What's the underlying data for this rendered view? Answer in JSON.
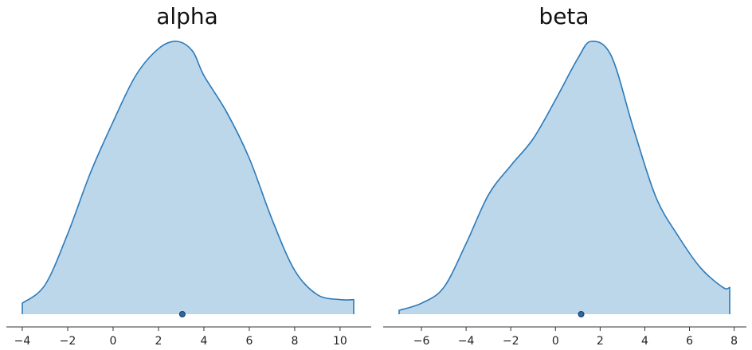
{
  "chart_data": [
    {
      "type": "area",
      "title": "alpha",
      "xlabel": "",
      "ylabel": "",
      "xlim": [
        -4,
        10.6
      ],
      "grid": false,
      "legend": "none",
      "x_ticks": [
        -4,
        -2,
        0,
        2,
        4,
        6,
        8,
        10
      ],
      "x_tick_labels": [
        "−4",
        "−2",
        "0",
        "2",
        "4",
        "6",
        "8",
        "10"
      ],
      "x": [
        -4.0,
        -3.0,
        -2.0,
        -1.0,
        0.0,
        1.0,
        2.0,
        2.8,
        3.5,
        4.0,
        5.0,
        6.0,
        7.0,
        8.0,
        9.0,
        10.0,
        10.6
      ],
      "density": [
        0.045,
        0.12,
        0.33,
        0.58,
        0.79,
        0.98,
        1.09,
        1.12,
        1.08,
        0.98,
        0.83,
        0.64,
        0.39,
        0.18,
        0.08,
        0.06,
        0.06
      ],
      "point_estimate": 3.05,
      "fill_color": "#bcd6ea",
      "line_color": "#2a7ab9",
      "point_color": "#2a6aa8"
    },
    {
      "type": "area",
      "title": "beta",
      "xlabel": "",
      "ylabel": "",
      "xlim": [
        -7,
        7.8
      ],
      "grid": false,
      "legend": "none",
      "x_ticks": [
        -6,
        -4,
        -2,
        0,
        2,
        4,
        6,
        8
      ],
      "x_tick_labels": [
        "−6",
        "−4",
        "−2",
        "0",
        "2",
        "4",
        "6",
        "8"
      ],
      "x": [
        -7.0,
        -6.0,
        -5.0,
        -4.0,
        -3.0,
        -2.0,
        -1.0,
        0.0,
        1.0,
        1.6,
        2.5,
        3.5,
        4.5,
        5.5,
        6.5,
        7.5,
        7.8
      ],
      "density": [
        0.016,
        0.045,
        0.11,
        0.29,
        0.49,
        0.61,
        0.72,
        0.88,
        1.05,
        1.12,
        1.06,
        0.76,
        0.48,
        0.32,
        0.19,
        0.11,
        0.11
      ],
      "point_estimate": 1.15,
      "fill_color": "#bcd6ea",
      "line_color": "#2a7ab9",
      "point_color": "#2a6aa8"
    }
  ]
}
